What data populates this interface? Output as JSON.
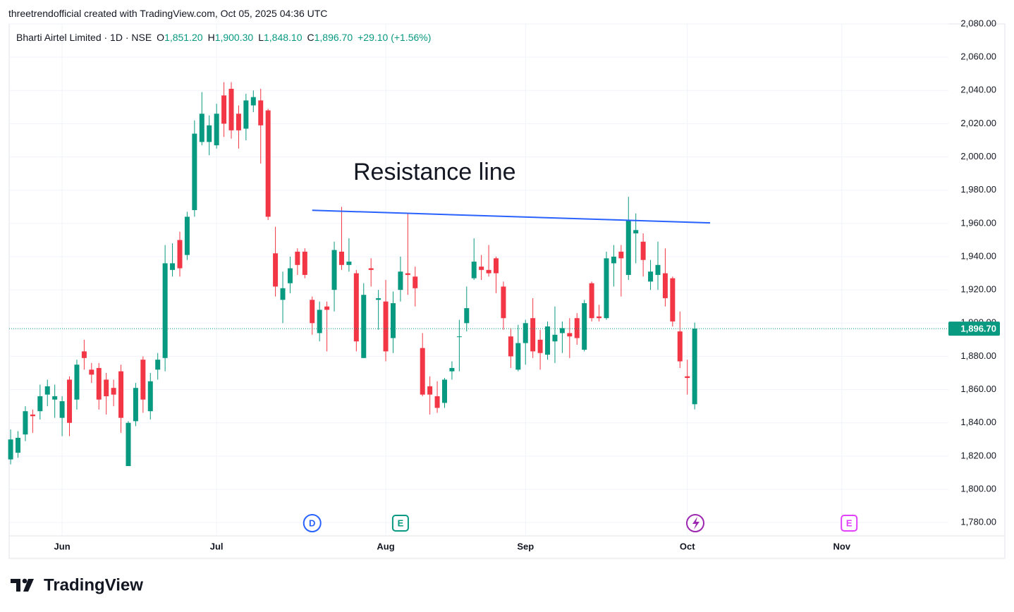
{
  "chart_data": {
    "type": "candlestick",
    "attribution": "threetrendofficial created with TradingView.com, Oct 05, 2025 04:36 UTC",
    "brand": "TradingView",
    "header": {
      "symbol": "Bharti Airtel Limited · 1D · NSE",
      "ohlc": [
        {
          "key": "O",
          "value": "1,851.20"
        },
        {
          "key": "H",
          "value": "1,900.30"
        },
        {
          "key": "L",
          "value": "1,848.10"
        },
        {
          "key": "C",
          "value": "1,896.70"
        }
      ],
      "change": "+29.10 (+1.56%)"
    },
    "annotation": {
      "text": "Resistance line",
      "x1": 41,
      "y1": 1967.9,
      "x2": 95.1,
      "y2": 1960.3,
      "color": "#2962ff"
    },
    "open": [
      1818,
      1822,
      1833,
      1845,
      1847,
      1857,
      1854,
      1843,
      1866,
      1854,
      1883,
      1872,
      1873,
      1866,
      1861,
      1871,
      1814,
      1841,
      1878,
      1847,
      1872,
      1879,
      1932,
      1950,
      1941,
      1968,
      2009,
      2009,
      2007,
      2037,
      2041,
      2026,
      2017,
      2031,
      2034,
      2028,
      1942,
      1914,
      1924,
      1943,
      1943,
      1914,
      1894,
      1910,
      1920,
      1943,
      1935,
      1930,
      1879,
      1933,
      1914,
      1913,
      1891,
      1920,
      1930,
      1928,
      1885,
      1862,
      1856,
      1852,
      1871,
      1892,
      1900,
      1927,
      1934,
      1932,
      1939,
      1922,
      1892,
      1872,
      1888,
      1903,
      1890,
      1881,
      1889,
      1894,
      1894,
      1903,
      1884,
      1924,
      1904,
      1903,
      1936,
      1943,
      1929,
      1954,
      1949,
      1925,
      1929,
      1930,
      1927,
      1895,
      1868,
      1851.2
    ],
    "high": [
      1836,
      1835,
      1850,
      1848,
      1863,
      1866,
      1863,
      1856,
      1868,
      1878,
      1890,
      1876,
      1876,
      1870,
      1866,
      1875,
      1841,
      1864,
      1880,
      1870,
      1882,
      1947,
      1948,
      1955,
      1967,
      2022,
      2039,
      2025,
      2032,
      2045,
      2045,
      2031,
      2038,
      2040,
      2041,
      2029,
      1958,
      1931,
      1940,
      1945,
      1945,
      1916,
      1913,
      1913,
      1949,
      1970,
      1951,
      1932,
      1924,
      1939,
      1920,
      1926,
      1919,
      1940,
      1966,
      1934,
      1894,
      1868,
      1865,
      1867,
      1877,
      1902,
      1922,
      1951,
      1941,
      1947,
      1940,
      1925,
      1897,
      1899,
      1902,
      1915,
      1896,
      1901,
      1910,
      1901,
      1903,
      1906,
      1914,
      1925,
      1911,
      1943,
      1947,
      1947,
      1976,
      1966,
      1954,
      1938,
      1949,
      1945,
      1928,
      1907,
      1878,
      1900.3
    ],
    "low": [
      1815,
      1819,
      1829,
      1834,
      1842,
      1850,
      1843,
      1832,
      1832,
      1848,
      1872,
      1864,
      1848,
      1845,
      1850,
      1834,
      1814,
      1838,
      1846,
      1842,
      1866,
      1871,
      1928,
      1928,
      1938,
      1964,
      2007,
      2001,
      2005,
      2012,
      2011,
      2005,
      2010,
      2027,
      1996,
      1962,
      1916,
      1900,
      1918,
      1929,
      1927,
      1893,
      1889,
      1883,
      1907,
      1932,
      1931,
      1883,
      1879,
      1922,
      1896,
      1877,
      1882,
      1913,
      1917,
      1910,
      1856,
      1845,
      1846,
      1849,
      1866,
      1871,
      1895,
      1926,
      1926,
      1928,
      1918,
      1896,
      1873,
      1871,
      1875,
      1879,
      1872,
      1878,
      1876,
      1882,
      1879,
      1887,
      1883,
      1901,
      1901,
      1902,
      1922,
      1916,
      1926,
      1936,
      1928,
      1920,
      1920,
      1910,
      1898,
      1873,
      1857,
      1848.1
    ],
    "close": [
      1830,
      1831,
      1847,
      1844,
      1856,
      1862,
      1856,
      1853,
      1840,
      1875,
      1879,
      1869,
      1854,
      1856,
      1857,
      1843,
      1840,
      1861,
      1854,
      1865,
      1878,
      1936,
      1936,
      1933,
      1964,
      2014,
      2026,
      2019,
      2026,
      2020,
      2016,
      2016,
      2034,
      2036,
      2019,
      1964,
      1922,
      1921,
      1933,
      1935,
      1929,
      1900,
      1908,
      1908,
      1944,
      1935,
      1937,
      1889,
      1917,
      1932,
      1915,
      1883,
      1912,
      1931,
      1929,
      1921,
      1857,
      1857,
      1849,
      1866,
      1873,
      1892,
      1909,
      1937,
      1932,
      1930,
      1930,
      1903,
      1880,
      1888,
      1900,
      1883,
      1882,
      1898,
      1893,
      1897,
      1892,
      1891,
      1912,
      1903,
      1903,
      1939,
      1940,
      1939,
      1962,
      1956,
      1938,
      1931,
      1935,
      1915,
      1901,
      1877,
      1867,
      1896.7
    ],
    "up_color": "#089981",
    "down_color": "#f23645",
    "last_price": {
      "value": 1896.7,
      "label": "1,896.70"
    },
    "xlim": [
      -0.2,
      127.5
    ],
    "xticks": [
      {
        "value": 7,
        "label": "Jun"
      },
      {
        "value": 28,
        "label": "Jul"
      },
      {
        "value": 51,
        "label": "Aug"
      },
      {
        "value": 70,
        "label": "Sep"
      },
      {
        "value": 92,
        "label": "Oct"
      },
      {
        "value": 113,
        "label": "Nov"
      }
    ],
    "ylim": [
      1772,
      2080
    ],
    "yticks": [
      {
        "value": 1780,
        "label": "1,780.00"
      },
      {
        "value": 1800,
        "label": "1,800.00"
      },
      {
        "value": 1820,
        "label": "1,820.00"
      },
      {
        "value": 1840,
        "label": "1,840.00"
      },
      {
        "value": 1860,
        "label": "1,860.00"
      },
      {
        "value": 1880,
        "label": "1,880.00"
      },
      {
        "value": 1900,
        "label": "1,900.00"
      },
      {
        "value": 1920,
        "label": "1,920.00"
      },
      {
        "value": 1940,
        "label": "1,940.00"
      },
      {
        "value": 1960,
        "label": "1,960.00"
      },
      {
        "value": 1980,
        "label": "1,980.00"
      },
      {
        "value": 2000,
        "label": "2,000.00"
      },
      {
        "value": 2020,
        "label": "2,020.00"
      },
      {
        "value": 2040,
        "label": "2,040.00"
      },
      {
        "value": 2060,
        "label": "2,060.00"
      },
      {
        "value": 2080,
        "label": "2,080.00"
      }
    ],
    "grid": true,
    "events": [
      {
        "label": "D",
        "x": 41,
        "color": "#2962ff"
      },
      {
        "label": "E",
        "x": 53,
        "color": "#089981"
      },
      {
        "label": "E",
        "x": 114,
        "color": "#e040fb"
      }
    ]
  }
}
